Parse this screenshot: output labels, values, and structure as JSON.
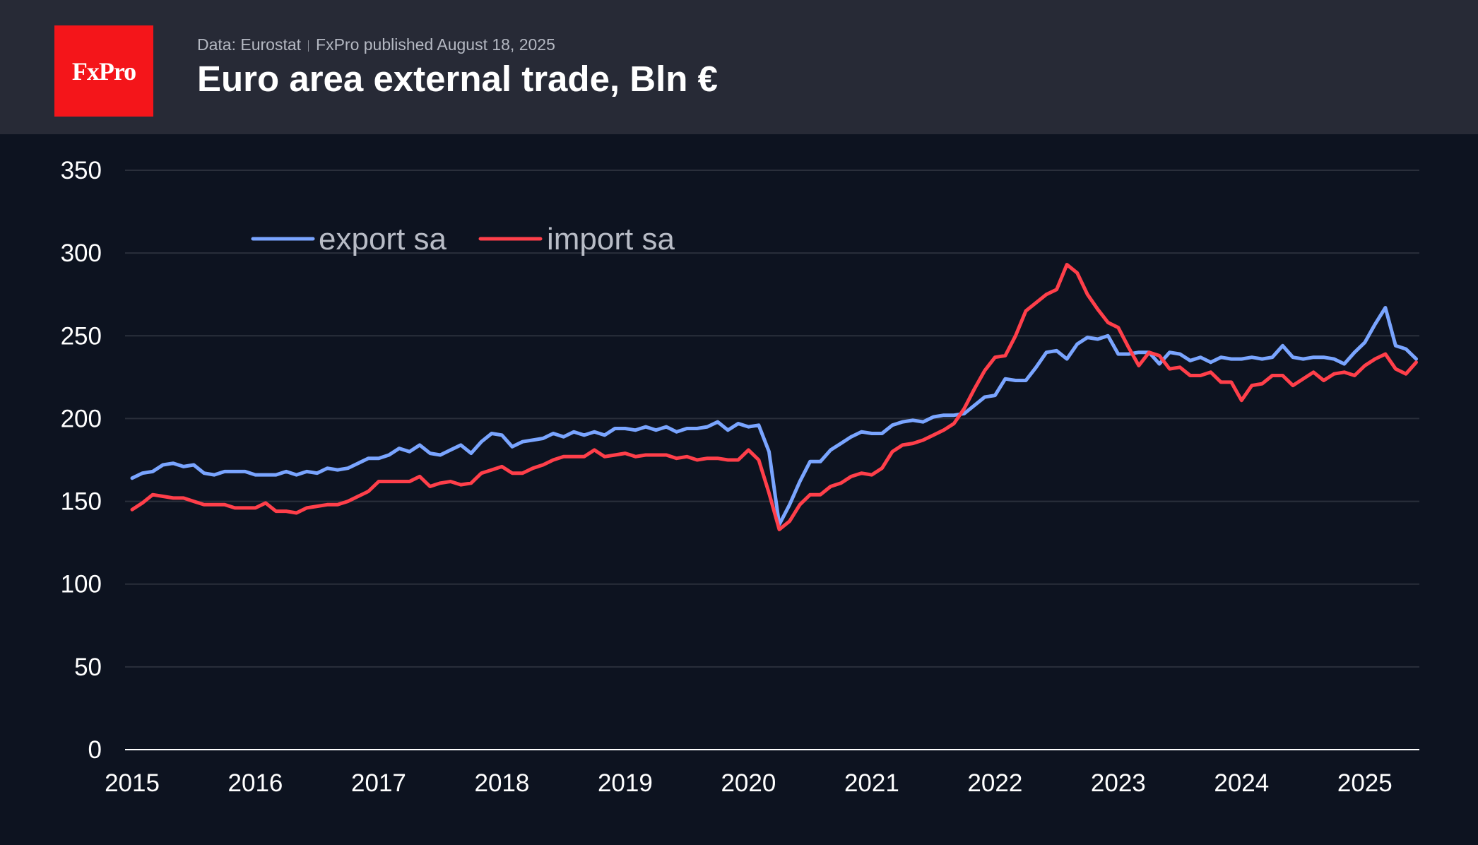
{
  "header": {
    "logo_text": "FxPro",
    "source": "Data: Eurostat",
    "published": "FxPro published August 18, 2025",
    "title": "Euro area external trade, Bln €"
  },
  "chart_data": {
    "type": "line",
    "title": "Euro area external trade, Bln €",
    "xlabel": "",
    "ylabel": "",
    "frequency": "monthly",
    "x_start": "2015-01",
    "x_end": "2025-06",
    "x_ticks": [
      "2015",
      "2016",
      "2017",
      "2018",
      "2019",
      "2020",
      "2021",
      "2022",
      "2023",
      "2024",
      "2025"
    ],
    "y_ticks": [
      0,
      50,
      100,
      150,
      200,
      250,
      300,
      350
    ],
    "ylim": [
      0,
      350
    ],
    "grid": true,
    "legend_position": "top-left",
    "series": [
      {
        "name": "export sa",
        "color": "#7aa5ff",
        "values": [
          164,
          167,
          168,
          172,
          173,
          171,
          172,
          167,
          166,
          168,
          168,
          168,
          166,
          166,
          166,
          168,
          166,
          168,
          167,
          170,
          169,
          170,
          173,
          176,
          176,
          178,
          182,
          180,
          184,
          179,
          178,
          181,
          184,
          179,
          186,
          191,
          190,
          183,
          186,
          187,
          188,
          191,
          189,
          192,
          190,
          192,
          190,
          194,
          194,
          193,
          195,
          193,
          195,
          192,
          194,
          194,
          195,
          198,
          193,
          197,
          195,
          196,
          180,
          136,
          148,
          162,
          174,
          174,
          181,
          185,
          189,
          192,
          191,
          191,
          196,
          198,
          199,
          198,
          201,
          202,
          202,
          203,
          208,
          213,
          214,
          224,
          223,
          223,
          231,
          240,
          241,
          236,
          245,
          249,
          248,
          250,
          239,
          239,
          240,
          240,
          233,
          240,
          239,
          235,
          237,
          234,
          237,
          236,
          236,
          237,
          236,
          237,
          244,
          237,
          236,
          237,
          237,
          236,
          233,
          240,
          246,
          257,
          267,
          244,
          242,
          236
        ]
      },
      {
        "name": "import sa",
        "color": "#ff3f4a",
        "values": [
          145,
          149,
          154,
          153,
          152,
          152,
          150,
          148,
          148,
          148,
          146,
          146,
          146,
          149,
          144,
          144,
          143,
          146,
          147,
          148,
          148,
          150,
          153,
          156,
          162,
          162,
          162,
          162,
          165,
          159,
          161,
          162,
          160,
          161,
          167,
          169,
          171,
          167,
          167,
          170,
          172,
          175,
          177,
          177,
          177,
          181,
          177,
          178,
          179,
          177,
          178,
          178,
          178,
          176,
          177,
          175,
          176,
          176,
          175,
          175,
          181,
          175,
          155,
          133,
          138,
          148,
          154,
          154,
          159,
          161,
          165,
          167,
          166,
          170,
          180,
          184,
          185,
          187,
          190,
          193,
          197,
          206,
          218,
          229,
          237,
          238,
          250,
          265,
          270,
          275,
          278,
          293,
          288,
          275,
          266,
          258,
          255,
          243,
          232,
          240,
          238,
          230,
          231,
          226,
          226,
          228,
          222,
          222,
          211,
          220,
          221,
          226,
          226,
          220,
          224,
          228,
          223,
          227,
          228,
          226,
          232,
          236,
          239,
          230,
          227,
          234
        ]
      }
    ]
  }
}
